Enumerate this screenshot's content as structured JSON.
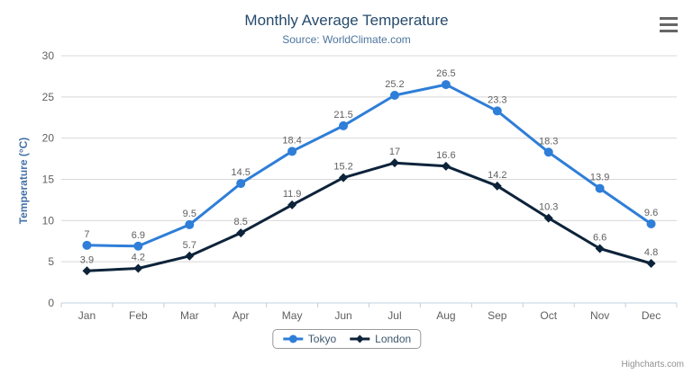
{
  "chart_data": {
    "type": "line",
    "title": "Monthly Average Temperature",
    "subtitle": "Source: WorldClimate.com",
    "categories": [
      "Jan",
      "Feb",
      "Mar",
      "Apr",
      "May",
      "Jun",
      "Jul",
      "Aug",
      "Sep",
      "Oct",
      "Nov",
      "Dec"
    ],
    "series": [
      {
        "name": "Tokyo",
        "color": "#2f7ed8",
        "marker": "circle",
        "values": [
          7,
          6.9,
          9.5,
          14.5,
          18.4,
          21.5,
          25.2,
          26.5,
          23.3,
          18.3,
          13.9,
          9.6
        ]
      },
      {
        "name": "London",
        "color": "#0d233a",
        "marker": "diamond",
        "values": [
          3.9,
          4.2,
          5.7,
          8.5,
          11.9,
          15.2,
          17,
          16.6,
          14.2,
          10.3,
          6.6,
          4.8
        ]
      }
    ],
    "xlabel": "",
    "ylabel": "Temperature (°C)",
    "ylim": [
      0,
      30
    ],
    "yticks": [
      0,
      5,
      10,
      15,
      20,
      25,
      30
    ],
    "grid": true,
    "legend_position": "bottom",
    "data_labels": true
  },
  "credits": {
    "label": "Highcharts.com"
  },
  "colors": {
    "background": "#ffffff",
    "grid": "#d8d8d8",
    "axis_line": "#c0d0e0",
    "axis_label": "#606060",
    "data_label": "#606060",
    "title": "#274b6d",
    "subtitle": "#4d759e",
    "y_axis_title": "#4572a7",
    "legend_text": "#3e576f",
    "legend_border": "#999999",
    "credits": "#909090",
    "menu_icon": "#666666"
  }
}
